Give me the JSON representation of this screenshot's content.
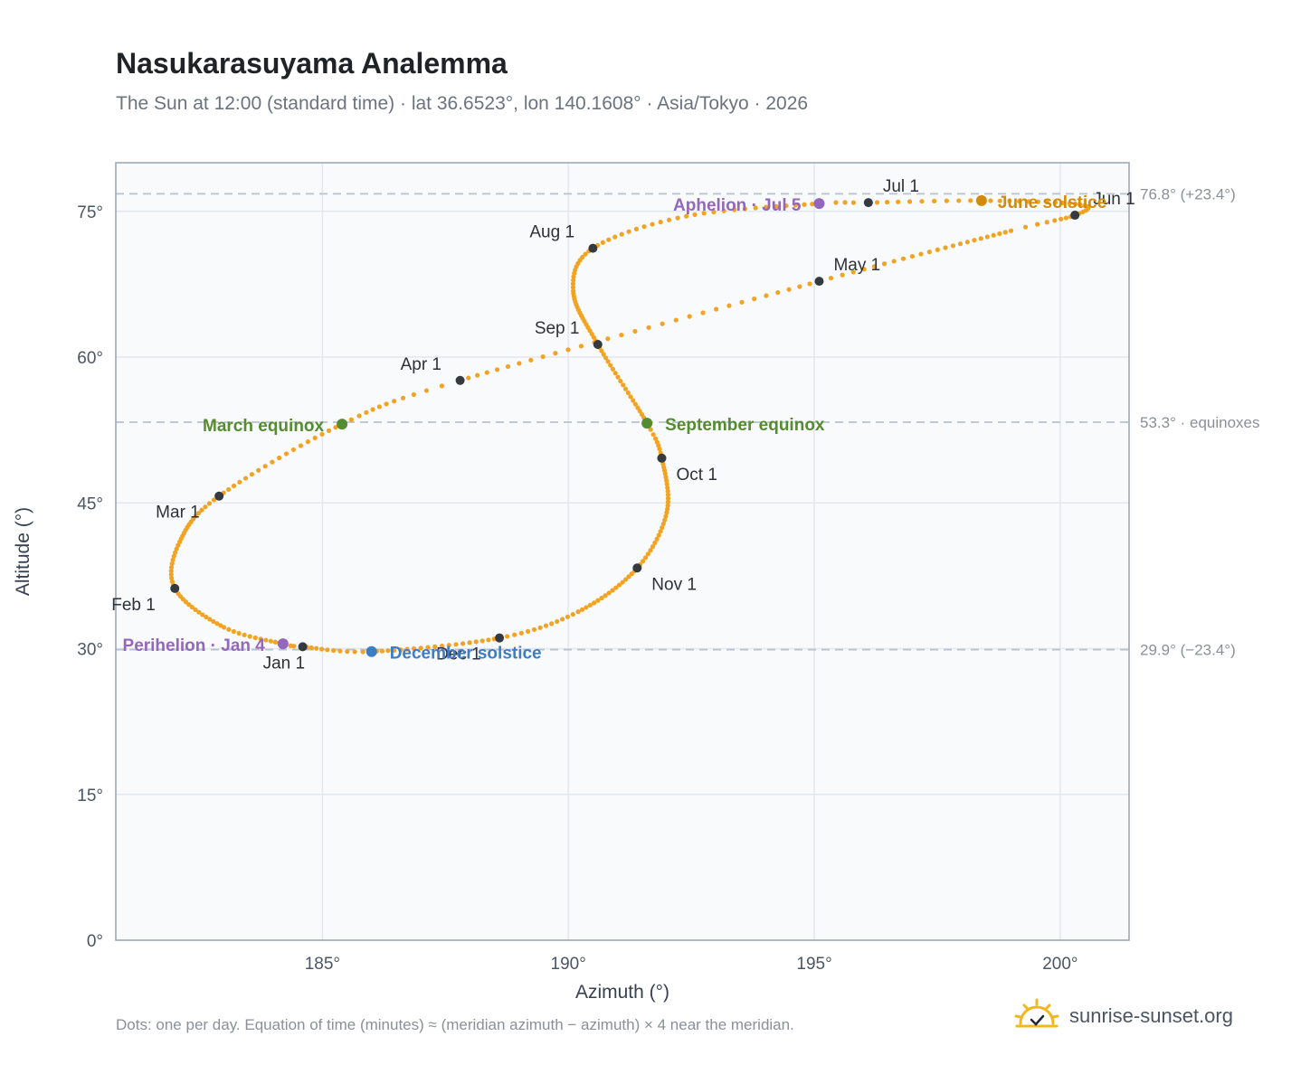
{
  "title": "Nasukarasuyama Analemma",
  "subtitle": "The Sun at 12:00 (standard time) · lat 36.6523°, lon 140.1608° · Asia/Tokyo · 2026",
  "footnote": "Dots: one per day. Equation of time (minutes) ≈ (meridian azimuth − azimuth) × 4 near the meridian.",
  "brand": "sunrise-sunset.org",
  "colors": {
    "curve": "#f2a322",
    "month_marker": "#343a40",
    "equinox": "#548c2f",
    "june_solstice": "#d18a09",
    "december_solstice": "#3d7dc4",
    "perihelion_aphelion": "#9467bd",
    "reference_line": "#b8c3cf",
    "plot_bg": "#f8fafc",
    "grid": "#e3e8ee",
    "frame": "#97a2b0",
    "logo": "#f2b71c"
  },
  "chart_data": {
    "type": "scatter",
    "xlabel": "Azimuth (°)",
    "ylabel": "Altitude (°)",
    "xlim": [
      180.8,
      201.4
    ],
    "ylim": [
      0,
      80
    ],
    "x_ticks": [
      185,
      190,
      195,
      200
    ],
    "x_tick_labels": [
      "185°",
      "190°",
      "195°",
      "200°"
    ],
    "y_ticks": [
      0,
      15,
      30,
      45,
      60,
      75
    ],
    "y_tick_labels": [
      "0°",
      "15°",
      "30°",
      "45°",
      "60°",
      "75°"
    ],
    "grid": true,
    "reference_lines": [
      {
        "y": 76.8,
        "label": "76.8° (+23.4°)"
      },
      {
        "y": 53.3,
        "label": "53.3° · equinoxes"
      },
      {
        "y": 29.9,
        "label": "29.9° (−23.4°)"
      }
    ],
    "month_markers": [
      {
        "label": "Jan 1",
        "az": 184.6,
        "alt": 30.2
      },
      {
        "label": "Feb 1",
        "az": 182.0,
        "alt": 36.2
      },
      {
        "label": "Mar 1",
        "az": 182.9,
        "alt": 45.7
      },
      {
        "label": "Apr 1",
        "az": 187.8,
        "alt": 57.6
      },
      {
        "label": "May 1",
        "az": 195.1,
        "alt": 67.8
      },
      {
        "label": "Jun 1",
        "az": 200.3,
        "alt": 74.6
      },
      {
        "label": "Jul 1",
        "az": 196.1,
        "alt": 75.9
      },
      {
        "label": "Aug 1",
        "az": 190.5,
        "alt": 71.2
      },
      {
        "label": "Sep 1",
        "az": 190.6,
        "alt": 61.3
      },
      {
        "label": "Oct 1",
        "az": 191.9,
        "alt": 49.6
      },
      {
        "label": "Nov 1",
        "az": 191.4,
        "alt": 38.3
      },
      {
        "label": "Dec 1",
        "az": 188.6,
        "alt": 31.1
      }
    ],
    "events": [
      {
        "label": "March equinox",
        "az": 185.4,
        "alt": 53.1,
        "kind": "equinox"
      },
      {
        "label": "September equinox",
        "az": 191.6,
        "alt": 53.2,
        "kind": "equinox"
      },
      {
        "label": "June solstice",
        "az": 198.4,
        "alt": 76.1,
        "kind": "june_solstice"
      },
      {
        "label": "December solstice",
        "az": 186.0,
        "alt": 29.7,
        "kind": "december_solstice"
      },
      {
        "label": "Perihelion · Jan 4",
        "az": 184.2,
        "alt": 30.5,
        "kind": "perihelion_aphelion"
      },
      {
        "label": "Aphelion · Jul 5",
        "az": 195.1,
        "alt": 75.8,
        "kind": "perihelion_aphelion"
      }
    ],
    "path_knots": [
      [
        1,
        184.6,
        30.2
      ],
      [
        4,
        184.2,
        30.5
      ],
      [
        16,
        183.0,
        32.2
      ],
      [
        32,
        182.0,
        36.2
      ],
      [
        45,
        182.1,
        41.0
      ],
      [
        60,
        182.9,
        45.7
      ],
      [
        79,
        185.4,
        53.1
      ],
      [
        91,
        187.8,
        57.6
      ],
      [
        121,
        195.1,
        67.8
      ],
      [
        144,
        199.0,
        73.0
      ],
      [
        152,
        200.3,
        74.6
      ],
      [
        160,
        200.4,
        75.7
      ],
      [
        172,
        198.4,
        76.1
      ],
      [
        182,
        196.1,
        75.9
      ],
      [
        186,
        195.1,
        75.8
      ],
      [
        200,
        192.4,
        74.5
      ],
      [
        213,
        190.5,
        71.2
      ],
      [
        226,
        190.1,
        66.8
      ],
      [
        244,
        190.6,
        61.3
      ],
      [
        266,
        191.6,
        53.2
      ],
      [
        274,
        191.9,
        49.6
      ],
      [
        290,
        192.0,
        44.0
      ],
      [
        305,
        191.4,
        38.3
      ],
      [
        322,
        190.2,
        33.8
      ],
      [
        335,
        188.6,
        31.1
      ],
      [
        355,
        186.0,
        29.7
      ],
      [
        366,
        184.6,
        30.2
      ]
    ]
  }
}
